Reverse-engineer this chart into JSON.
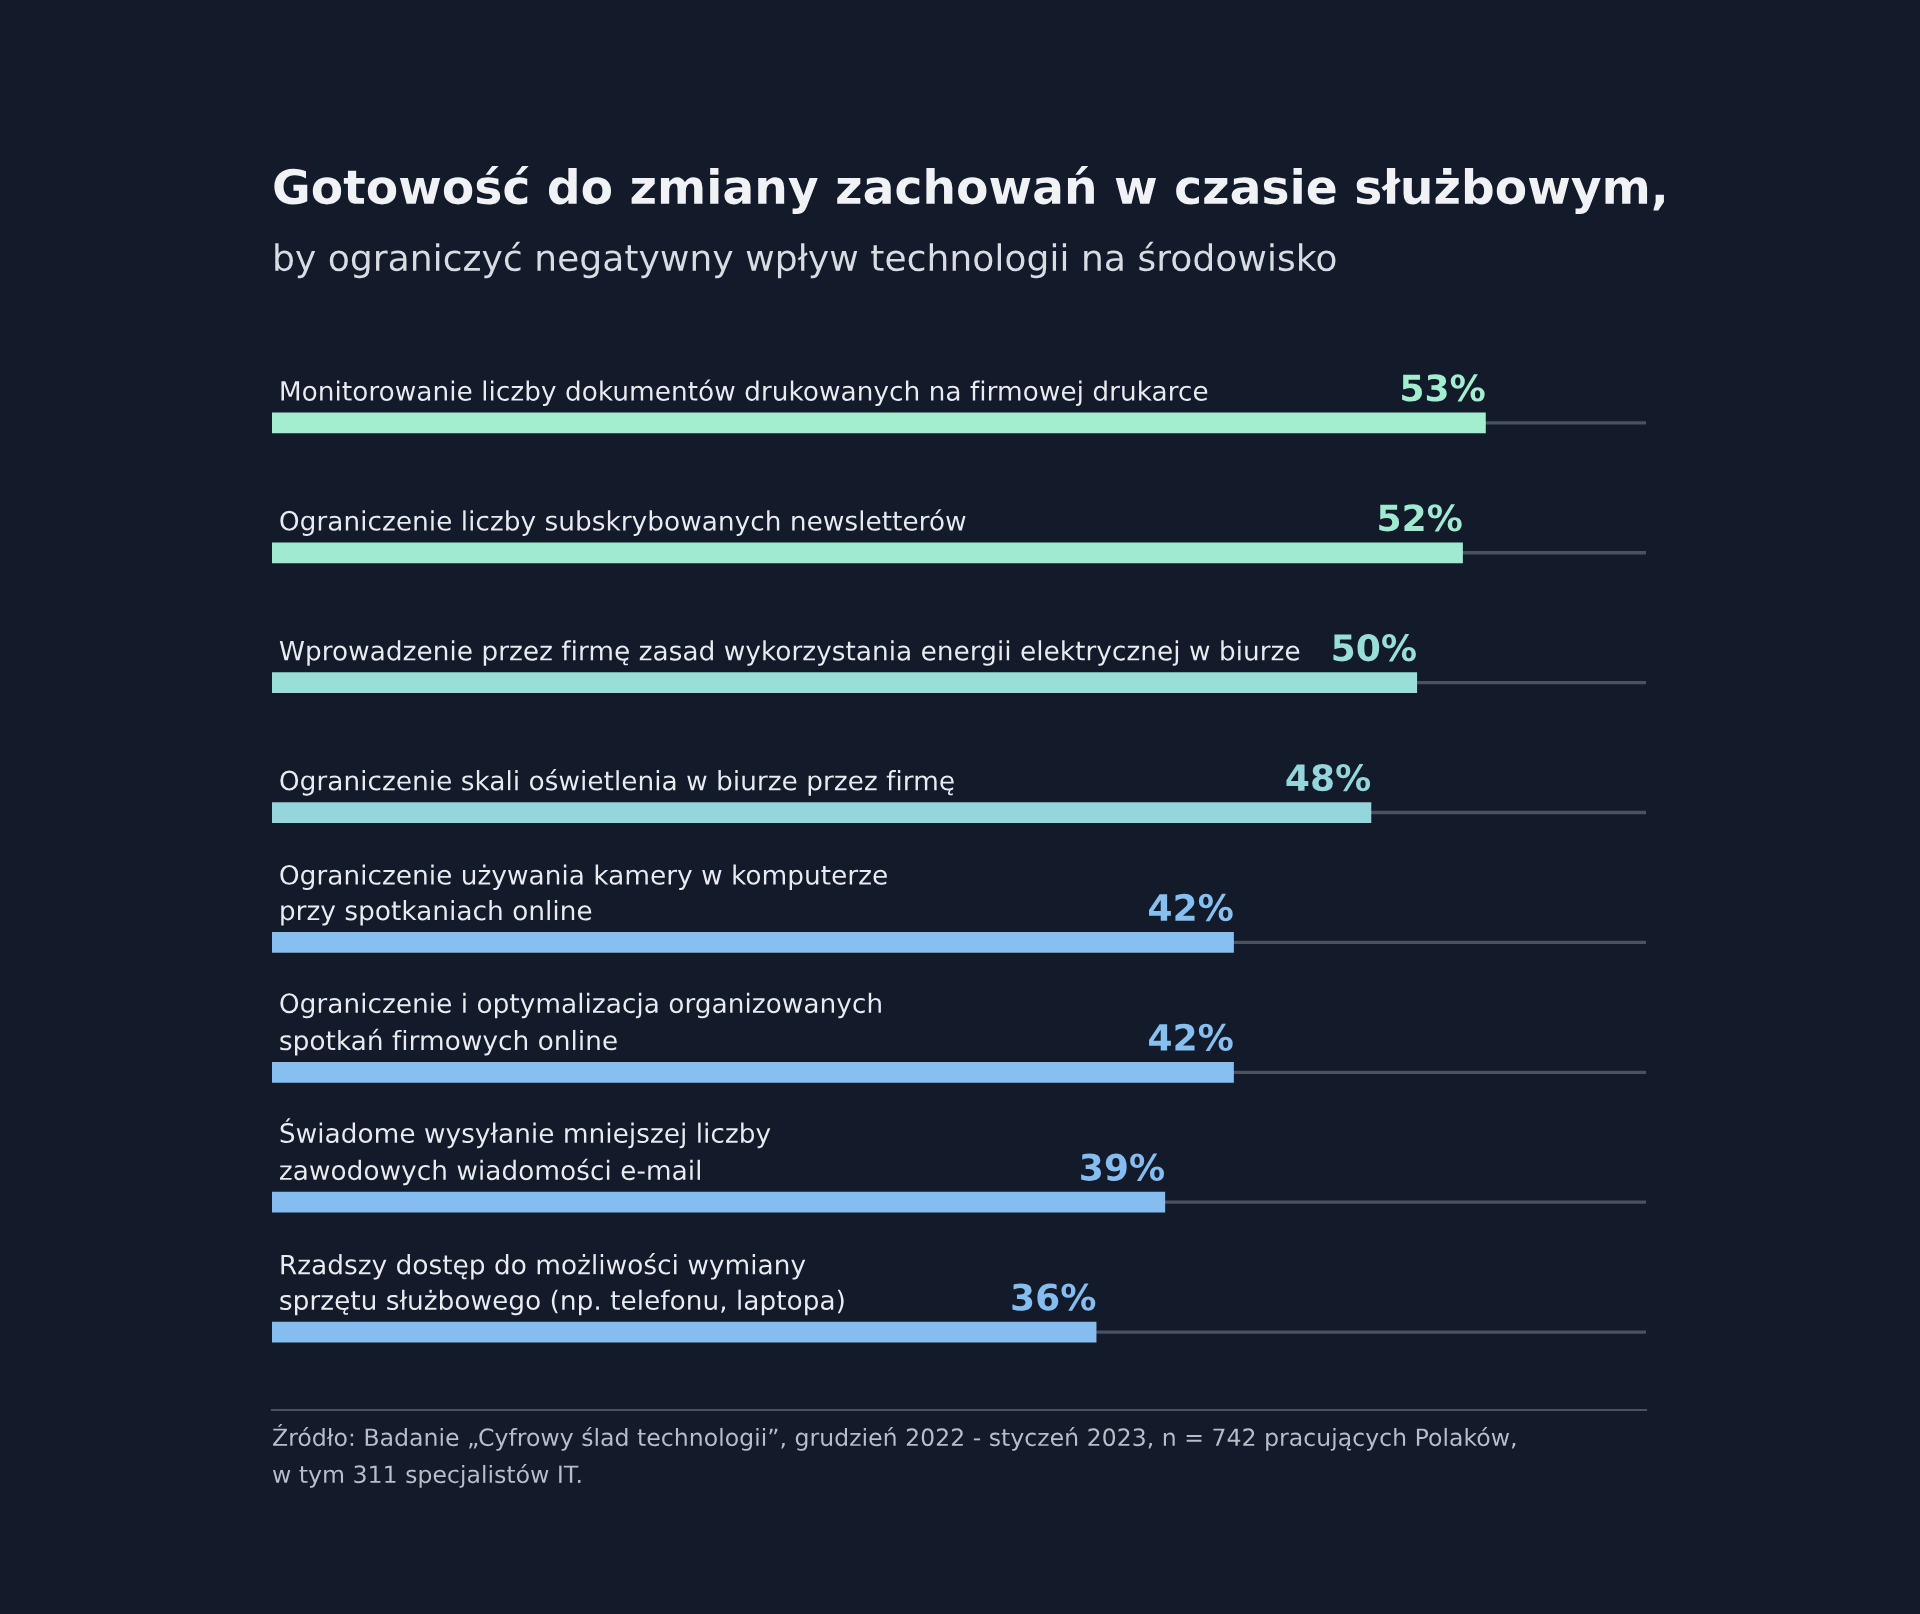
{
  "chart_data": {
    "type": "bar",
    "orientation": "horizontal",
    "title": "Gotowość do zmiany zachowań w czasie służbowym,",
    "subtitle": "by ograniczyć negatywny wpływ technologii na środowisko",
    "categories": [
      "Monitorowanie liczby dokumentów drukowanych na firmowej drukarce",
      "Ograniczenie liczby subskrybowanych newsletterów",
      "Wprowadzenie przez firmę zasad wykorzystania energii elektrycznej w biurze",
      "Ograniczenie skali oświetlenia w biurze przez firmę",
      "Ograniczenie używania kamery w komputerze\nprzy spotkaniach online",
      "Ograniczenie i optymalizacja organizowanych\nspotkań firmowych online",
      "Świadome wysyłanie mniejszej liczby\nzawodowych wiadomości e-mail",
      "Rzadszy dostęp do możliwości wymiany\nsprzętu służbowego (np. telefonu, laptopa)"
    ],
    "values": [
      53,
      52,
      50,
      48,
      42,
      42,
      39,
      36
    ],
    "colors": [
      "#a2eecf",
      "#a0ead1",
      "#99dfd7",
      "#94d6dc",
      "#86bff0",
      "#86bff0",
      "#86bdf0",
      "#86bdf0"
    ],
    "value_labels": [
      "53%",
      "52%",
      "50%",
      "48%",
      "42%",
      "42%",
      "39%",
      "36%"
    ],
    "grid": "y",
    "legend": false,
    "annotations": [
      "Źródło: Badanie „Cyfrowy ślad technologii”, grudzień 2022 - styczeń 2023, n = 742 pracujących Polaków,\nw tym 311 specjalistów IT."
    ]
  }
}
